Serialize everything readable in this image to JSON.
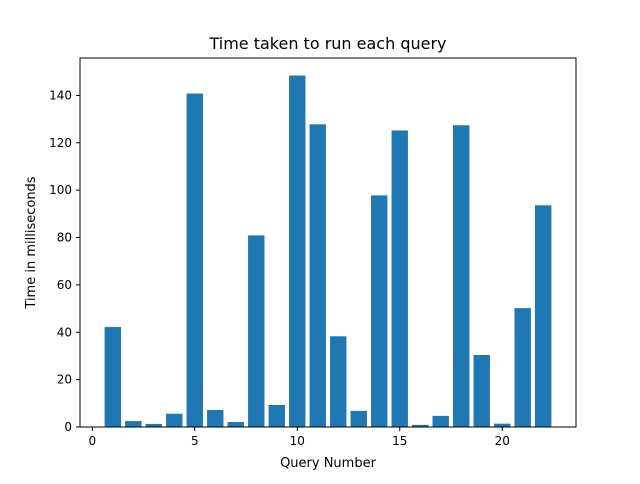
{
  "chart_data": {
    "type": "bar",
    "title": "Time taken to run each query",
    "xlabel": "Query Number",
    "ylabel": "Time in milliseconds",
    "x": [
      1,
      2,
      3,
      4,
      5,
      6,
      7,
      8,
      9,
      10,
      11,
      12,
      13,
      14,
      15,
      16,
      17,
      18,
      19,
      20,
      21,
      22
    ],
    "values": [
      42.2,
      2.5,
      1.3,
      5.6,
      140.8,
      7.2,
      2.1,
      80.9,
      9.3,
      148.4,
      127.8,
      38.3,
      6.8,
      97.8,
      125.2,
      0.9,
      4.7,
      127.4,
      30.4,
      1.4,
      50.2,
      93.6
    ],
    "xlim": [
      -0.6,
      23.6
    ],
    "ylim": [
      0,
      155.8
    ],
    "xticks": [
      0,
      5,
      10,
      15,
      20
    ],
    "yticks": [
      0,
      20,
      40,
      60,
      80,
      100,
      120,
      140
    ],
    "bar_color": "#1f77b4",
    "grid": false,
    "legend": "none"
  }
}
